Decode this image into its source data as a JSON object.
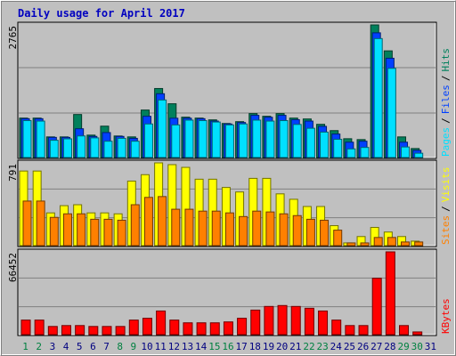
{
  "chart_data": [
    {
      "type": "bar",
      "title": "Daily usage for April 2017",
      "categories": [
        "1",
        "2",
        "3",
        "4",
        "5",
        "6",
        "7",
        "8",
        "9",
        "10",
        "11",
        "12",
        "13",
        "14",
        "15",
        "16",
        "17",
        "18",
        "19",
        "20",
        "21",
        "22",
        "23",
        "24",
        "25",
        "26",
        "27",
        "28",
        "29",
        "30",
        "31"
      ],
      "category_colors": [
        "#008040",
        "#008040",
        "#000080",
        "#000080",
        "#000080",
        "#000080",
        "#000080",
        "#008040",
        "#008040",
        "#000080",
        "#000080",
        "#000080",
        "#000080",
        "#000080",
        "#008040",
        "#008040",
        "#000080",
        "#000080",
        "#000080",
        "#000080",
        "#000080",
        "#008040",
        "#008040",
        "#000080",
        "#000080",
        "#000080",
        "#000080",
        "#000080",
        "#008040",
        "#008040",
        "#000080"
      ],
      "legend_separator": "/",
      "series": [
        {
          "name": "Hits",
          "color": "#00805c",
          "values": [
            822,
            822,
            430,
            430,
            897,
            467,
            654,
            449,
            430,
            990,
            1439,
            1121,
            841,
            822,
            785,
            710,
            748,
            916,
            860,
            916,
            822,
            804,
            692,
            561,
            392,
            374,
            2765,
            2224,
            430,
            187,
            0
          ]
        },
        {
          "name": "Files",
          "color": "#0040ff",
          "values": [
            810,
            810,
            420,
            420,
            600,
            440,
            520,
            440,
            400,
            860,
            1330,
            820,
            820,
            810,
            760,
            700,
            730,
            880,
            840,
            880,
            790,
            760,
            650,
            490,
            320,
            340,
            2600,
            2070,
            320,
            150,
            0
          ]
        },
        {
          "name": "Pages",
          "color": "#00e0ff",
          "values": [
            770,
            760,
            360,
            390,
            450,
            410,
            340,
            400,
            340,
            700,
            1200,
            680,
            780,
            770,
            740,
            680,
            700,
            780,
            760,
            770,
            690,
            610,
            530,
            380,
            180,
            210,
            2480,
            1860,
            220,
            90,
            0
          ]
        }
      ],
      "ylim": [
        0,
        2765
      ],
      "yticks": [
        2765
      ],
      "grid": true
    },
    {
      "type": "bar",
      "legend_separator": "/",
      "series": [
        {
          "name": "Visits",
          "color": "#ffff00",
          "values": [
            713,
            713,
            313,
            382,
            391,
            313,
            313,
            304,
            617,
            678,
            791,
            774,
            748,
            635,
            635,
            556,
            513,
            643,
            643,
            495,
            443,
            374,
            374,
            191,
            26,
            87,
            174,
            130,
            87,
            43,
            0
          ]
        },
        {
          "name": "Sites",
          "color": "#ff8000",
          "values": [
            426,
            426,
            270,
            304,
            304,
            252,
            252,
            243,
            391,
            461,
            469,
            348,
            348,
            330,
            330,
            313,
            278,
            330,
            322,
            304,
            287,
            252,
            243,
            148,
            26,
            26,
            78,
            78,
            35,
            35,
            0
          ]
        }
      ],
      "ylim": [
        0,
        791
      ],
      "yticks": [
        791
      ],
      "grid": true
    },
    {
      "type": "bar",
      "series": [
        {
          "name": "KBytes",
          "color": "#ff0000",
          "values": [
            11684,
            11684,
            6572,
            7302,
            7302,
            6572,
            6572,
            6572,
            11684,
            13144,
            18986,
            11684,
            9494,
            9494,
            9494,
            10224,
            13144,
            19717,
            22638,
            23368,
            22638,
            21177,
            18986,
            11684,
            7302,
            7302,
            45273,
            66452,
            7302,
            2190,
            0
          ]
        }
      ],
      "ylim": [
        0,
        66452
      ],
      "yticks": [
        66452
      ],
      "grid": true
    }
  ]
}
